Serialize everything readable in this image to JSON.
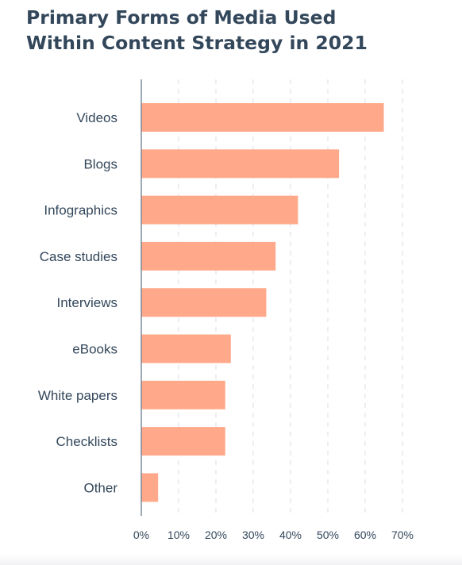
{
  "chart_data": {
    "type": "bar",
    "orientation": "horizontal",
    "title_lines": [
      "Primary Forms of Media Used",
      "Within Content Strategy in 2021"
    ],
    "categories": [
      "Videos",
      "Blogs",
      "Infographics",
      "Case studies",
      "Interviews",
      "eBooks",
      "White papers",
      "Checklists",
      "Other"
    ],
    "values": [
      65,
      53,
      42,
      36,
      33.5,
      24,
      22.5,
      22.5,
      4.5
    ],
    "unit": "%",
    "xlim": [
      0,
      70
    ],
    "x_ticks": [
      0,
      10,
      20,
      30,
      40,
      50,
      60,
      70
    ],
    "x_tick_labels": [
      "0%",
      "10%",
      "20%",
      "30%",
      "40%",
      "50%",
      "60%",
      "70%"
    ],
    "grid": "vertical dashed",
    "legend": "none",
    "bar_color": "#ffa98a",
    "axis_color": "#6b7b8c",
    "grid_color": "#dfe3eb",
    "text_color": "#33475b"
  }
}
